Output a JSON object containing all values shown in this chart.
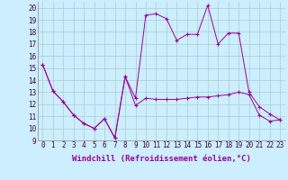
{
  "xlabel": "Windchill (Refroidissement éolien,°C)",
  "x_hours": [
    0,
    1,
    2,
    3,
    4,
    5,
    6,
    7,
    8,
    9,
    10,
    11,
    12,
    13,
    14,
    15,
    16,
    17,
    18,
    19,
    20,
    21,
    22,
    23
  ],
  "line1": [
    15.3,
    13.1,
    12.2,
    11.1,
    10.4,
    10.0,
    10.8,
    9.2,
    14.3,
    11.9,
    12.5,
    12.4,
    12.4,
    12.4,
    12.5,
    12.6,
    12.6,
    12.7,
    12.8,
    13.0,
    12.8,
    11.1,
    10.6,
    10.7
  ],
  "line2": [
    15.3,
    13.1,
    12.2,
    11.1,
    10.4,
    10.0,
    10.8,
    9.2,
    14.3,
    12.5,
    19.4,
    19.5,
    19.1,
    17.3,
    17.8,
    17.8,
    20.2,
    17.0,
    17.9,
    17.9,
    13.0,
    11.8,
    11.2,
    10.7
  ],
  "color": "#990099",
  "bg_color": "#cceeff",
  "grid_color": "#aacccc",
  "ylim": [
    9,
    20.5
  ],
  "yticks": [
    9,
    10,
    11,
    12,
    13,
    14,
    15,
    16,
    17,
    18,
    19,
    20
  ],
  "xlim": [
    -0.5,
    23.5
  ],
  "tick_fontsize": 5.5,
  "xlabel_fontsize": 6.5
}
